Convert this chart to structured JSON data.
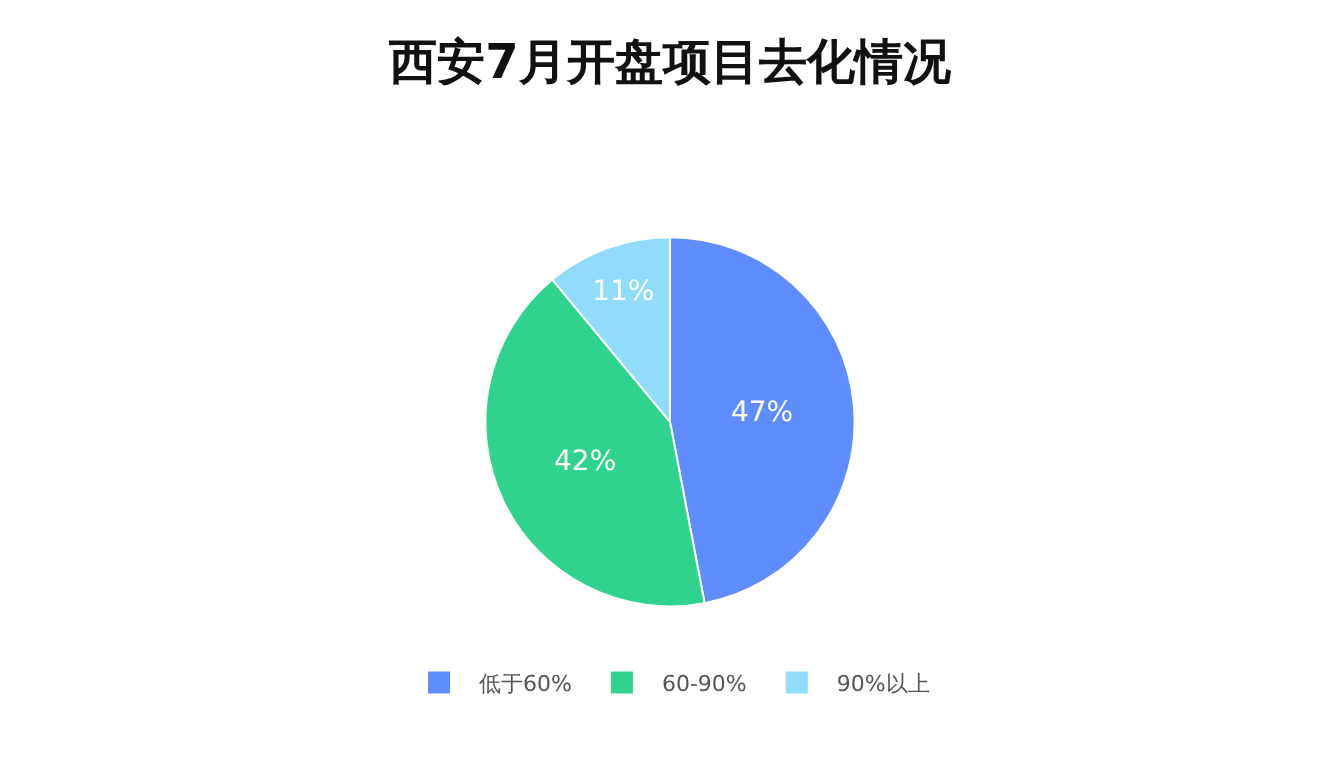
{
  "chart_data": {
    "type": "pie",
    "title": "西安7月开盘项目去化情况",
    "categories": [
      "低于60%",
      "60-90%",
      "90%以上"
    ],
    "values": [
      47,
      42,
      11
    ],
    "value_labels": [
      "47%",
      "42%",
      "11%"
    ],
    "colors": [
      "#5f8dff",
      "#2fd38e",
      "#8fdcfb"
    ],
    "legend": "bottom"
  }
}
